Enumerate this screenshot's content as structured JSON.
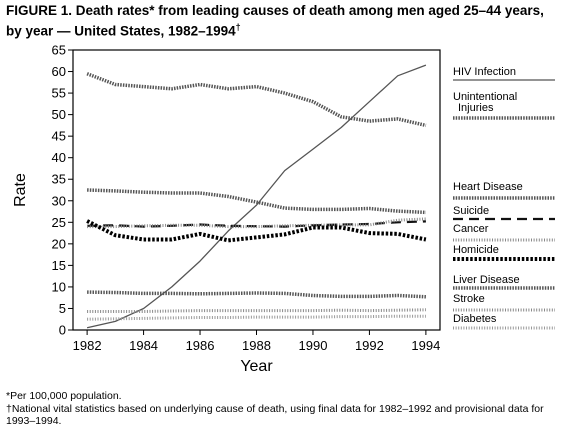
{
  "header": {
    "title_line1": "FIGURE 1. Death rates* from leading causes of death among men aged 25–44 years,",
    "title_line2": "by year — United States, 1982–1994",
    "title_mark": "†"
  },
  "footnotes": {
    "note1": "*Per 100,000 population.",
    "note2": "†National vital statistics based on underlying cause of death, using final data for 1982–1992 and provisional data for 1993–1994."
  },
  "chart_data": {
    "type": "line",
    "xlabel": "Year",
    "ylabel": "Rate",
    "xlim": [
      1981.5,
      1994.5
    ],
    "ylim": [
      0,
      65
    ],
    "x_ticks": [
      1982,
      1984,
      1986,
      1988,
      1990,
      1992,
      1994
    ],
    "y_ticks": [
      0,
      5,
      10,
      15,
      20,
      25,
      30,
      35,
      40,
      45,
      50,
      55,
      60,
      65
    ],
    "grid": false,
    "legend_position": "right",
    "x": [
      1982,
      1983,
      1984,
      1985,
      1986,
      1987,
      1988,
      1989,
      1990,
      1991,
      1992,
      1993,
      1994
    ],
    "series": [
      {
        "name": "HIV Infection",
        "style": "solid",
        "color": "#555555",
        "values": [
          0.5,
          2,
          5,
          10,
          16,
          23,
          29,
          37,
          42,
          47,
          53,
          59,
          61.5
        ]
      },
      {
        "name": "Unintentional Injuries",
        "style": "dotted-band",
        "color": "#555555",
        "values": [
          59.5,
          57,
          56.5,
          56,
          57,
          56,
          56.5,
          55,
          53,
          49.5,
          48.5,
          49,
          47.5
        ]
      },
      {
        "name": "Heart Disease",
        "style": "dotted-band",
        "color": "#555555",
        "values": [
          32.5,
          32.3,
          32,
          31.8,
          31.8,
          31,
          29.7,
          28.3,
          28,
          28,
          28.2,
          27.6,
          27.3
        ]
      },
      {
        "name": "Suicide",
        "style": "dashed",
        "color": "#111111",
        "values": [
          24.2,
          24.3,
          24,
          24.2,
          24.5,
          24.2,
          24.1,
          24,
          24.3,
          24.5,
          24.6,
          25,
          25.2
        ]
      },
      {
        "name": "Cancer",
        "style": "light-dotted",
        "color": "#888888",
        "values": [
          24,
          24,
          24.2,
          24.3,
          24.3,
          24,
          24,
          24.2,
          24.3,
          24.4,
          24.4,
          25.5,
          25.8
        ]
      },
      {
        "name": "Homicide",
        "style": "heavy-dotted",
        "color": "#000000",
        "values": [
          25.3,
          22,
          21,
          21,
          22.3,
          20.8,
          21.5,
          22.2,
          23.8,
          23.8,
          22.5,
          22.3,
          21
        ]
      },
      {
        "name": "Liver Disease",
        "style": "dotted-band",
        "color": "#555555",
        "values": [
          8.8,
          8.7,
          8.5,
          8.5,
          8.4,
          8.5,
          8.6,
          8.5,
          8,
          7.8,
          7.8,
          8,
          7.7
        ]
      },
      {
        "name": "Stroke",
        "style": "light-dotted",
        "color": "#888888",
        "values": [
          4.3,
          4.3,
          4.3,
          4.4,
          4.5,
          4.5,
          4.5,
          4.5,
          4.5,
          4.6,
          4.5,
          4.6,
          4.7
        ]
      },
      {
        "name": "Diabetes",
        "style": "light-dotted",
        "color": "#999999",
        "values": [
          2.5,
          2.6,
          2.7,
          2.8,
          2.9,
          2.9,
          3,
          3,
          3,
          3.1,
          3.1,
          3.2,
          3.2
        ]
      }
    ],
    "legend_labels": [
      {
        "series": "HIV Infection",
        "lines": [
          "HIV Infection"
        ]
      },
      {
        "series": "Unintentional Injuries",
        "lines": [
          "Unintentional",
          "Injuries"
        ]
      },
      {
        "series": "Heart Disease",
        "lines": [
          "Heart Disease"
        ]
      },
      {
        "series": "Suicide",
        "lines": [
          "Suicide"
        ]
      },
      {
        "series": "Cancer",
        "lines": [
          "Cancer"
        ]
      },
      {
        "series": "Homicide",
        "lines": [
          "Homicide"
        ]
      },
      {
        "series": "Liver Disease",
        "lines": [
          "Liver Disease"
        ]
      },
      {
        "series": "Stroke",
        "lines": [
          "Stroke"
        ]
      },
      {
        "series": "Diabetes",
        "lines": [
          "Diabetes"
        ]
      }
    ]
  }
}
